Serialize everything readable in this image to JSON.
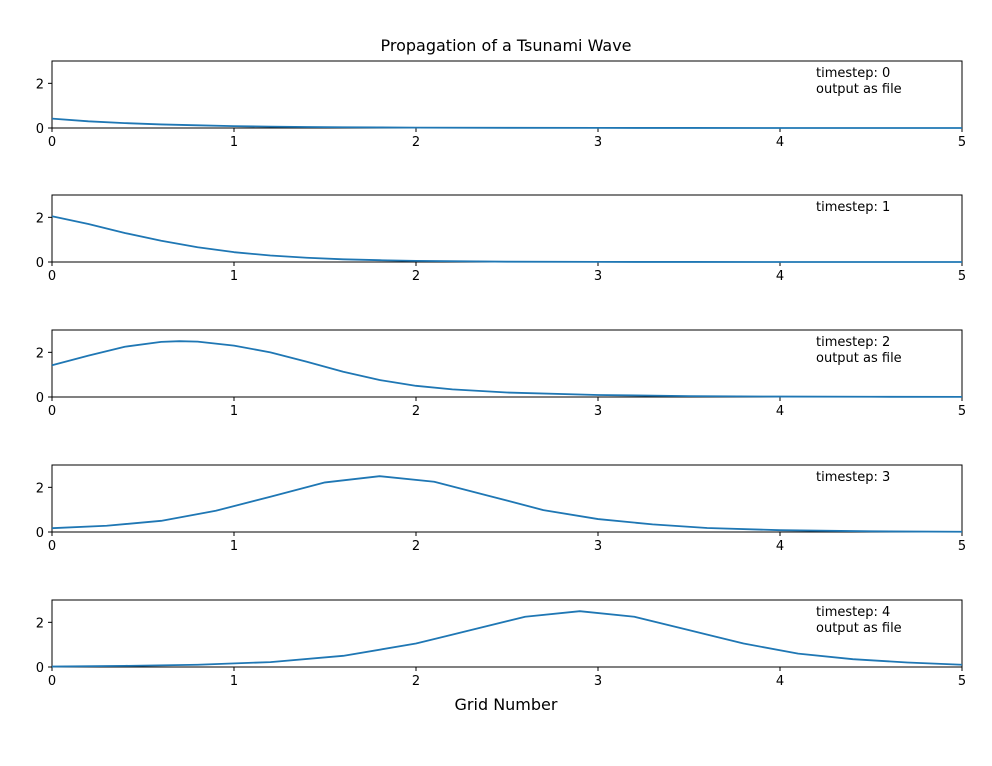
{
  "chart_data": {
    "type": "line",
    "title": "Propagation of a Tsunami Wave",
    "xlabel": "Grid Number",
    "ylabel": "",
    "xlim": [
      0,
      5
    ],
    "ylim": [
      0,
      3
    ],
    "xticks": [
      0,
      1,
      2,
      3,
      4,
      5
    ],
    "yticks": [
      0,
      2
    ],
    "grid": false,
    "line_color": "#1f77b4",
    "subplots": [
      {
        "annotations": [
          "timestep: 0",
          "output as file"
        ],
        "series": [
          {
            "x": [
              0,
              0.2,
              0.4,
              0.6,
              0.8,
              1.0,
              1.2,
              1.4,
              1.6,
              1.8,
              2.0,
              2.5,
              3.0,
              3.5,
              4.0,
              4.5,
              5.0
            ],
            "y": [
              0.42,
              0.3,
              0.22,
              0.16,
              0.12,
              0.085,
              0.06,
              0.045,
              0.033,
              0.025,
              0.018,
              0.009,
              0.004,
              0.002,
              0.001,
              0.0005,
              0.0002
            ]
          }
        ]
      },
      {
        "annotations": [
          "timestep: 1"
        ],
        "series": [
          {
            "x": [
              0,
              0.2,
              0.4,
              0.6,
              0.8,
              1.0,
              1.2,
              1.4,
              1.6,
              1.8,
              2.0,
              2.5,
              3.0,
              3.5,
              4.0,
              4.5,
              5.0
            ],
            "y": [
              2.05,
              1.7,
              1.3,
              0.95,
              0.66,
              0.44,
              0.29,
              0.19,
              0.12,
              0.08,
              0.05,
              0.015,
              0.005,
              0.002,
              0.001,
              0.0005,
              0.0002
            ]
          }
        ]
      },
      {
        "annotations": [
          "timestep: 2",
          "output as file"
        ],
        "series": [
          {
            "x": [
              0,
              0.2,
              0.4,
              0.6,
              0.7,
              0.8,
              1.0,
              1.2,
              1.4,
              1.6,
              1.8,
              2.0,
              2.2,
              2.5,
              3.0,
              3.5,
              4.0,
              4.5,
              5.0
            ],
            "y": [
              1.42,
              1.85,
              2.25,
              2.47,
              2.5,
              2.48,
              2.3,
              2.0,
              1.58,
              1.13,
              0.76,
              0.5,
              0.34,
              0.2,
              0.09,
              0.04,
              0.02,
              0.01,
              0.005
            ]
          }
        ]
      },
      {
        "annotations": [
          "timestep: 3"
        ],
        "series": [
          {
            "x": [
              0,
              0.3,
              0.6,
              0.9,
              1.2,
              1.5,
              1.8,
              2.1,
              2.4,
              2.7,
              3.0,
              3.3,
              3.6,
              4.0,
              4.5,
              5.0
            ],
            "y": [
              0.17,
              0.28,
              0.5,
              0.95,
              1.58,
              2.22,
              2.5,
              2.25,
              1.62,
              0.98,
              0.58,
              0.34,
              0.18,
              0.08,
              0.03,
              0.01
            ]
          }
        ]
      },
      {
        "annotations": [
          "timestep: 4",
          "output as file"
        ],
        "series": [
          {
            "x": [
              0,
              0.4,
              0.8,
              1.2,
              1.6,
              2.0,
              2.3,
              2.6,
              2.9,
              3.2,
              3.5,
              3.8,
              4.1,
              4.4,
              4.7,
              5.0
            ],
            "y": [
              0.02,
              0.05,
              0.1,
              0.22,
              0.5,
              1.05,
              1.65,
              2.25,
              2.5,
              2.25,
              1.65,
              1.05,
              0.6,
              0.35,
              0.2,
              0.1
            ]
          }
        ]
      }
    ]
  }
}
